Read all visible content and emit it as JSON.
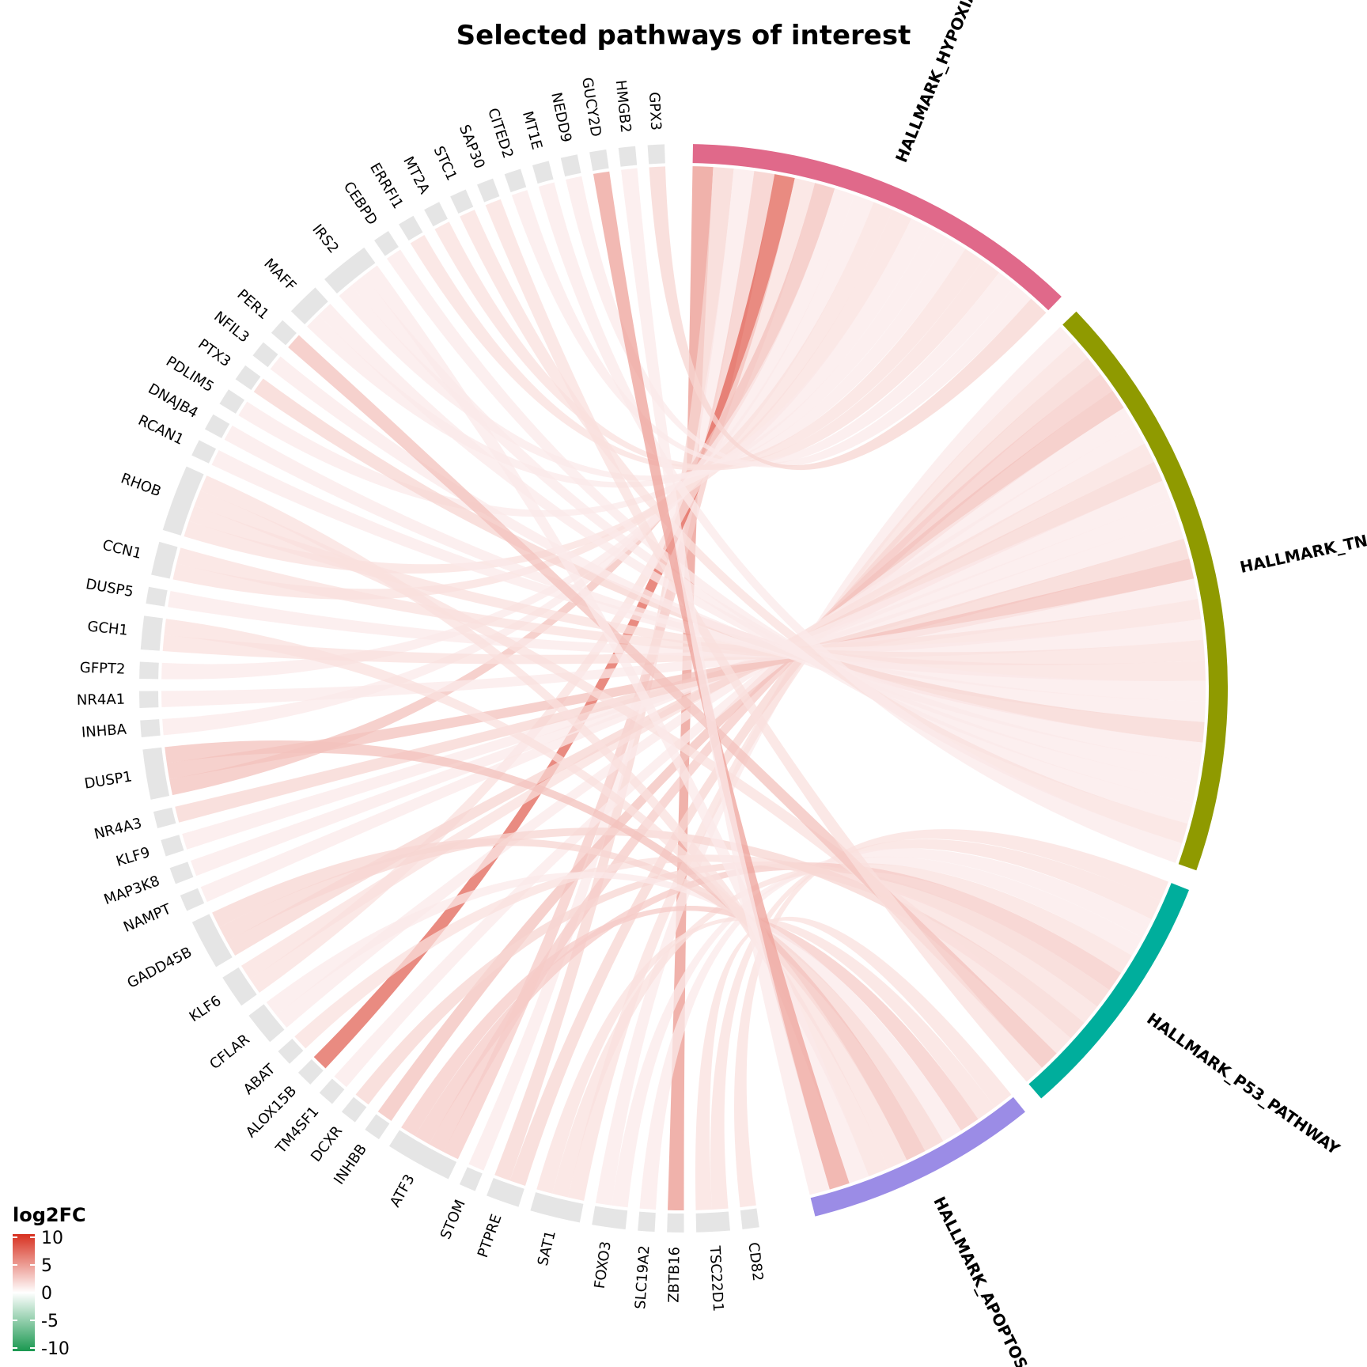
{
  "chart_data": {
    "type": "chord",
    "title": "Selected pathways of interest",
    "pathways": [
      {
        "name": "HALLMARK_HYPOXIA",
        "color": "#E0698A"
      },
      {
        "name": "HALLMARK_TNFA_SIGNALING_VIA_NFKB",
        "color": "#8F9A00"
      },
      {
        "name": "HALLMARK_P53_PATHWAY",
        "color": "#00AE9C"
      },
      {
        "name": "HALLMARK_APOPTOSIS",
        "color": "#9B8CE6"
      }
    ],
    "genes": [
      {
        "name": "CD82",
        "log2fc": 1.5,
        "pathways": [
          2
        ]
      },
      {
        "name": "TSC22D1",
        "log2fc": 1.5,
        "pathways": [
          2,
          3
        ]
      },
      {
        "name": "ZBTB16",
        "log2fc": 5.0,
        "pathways": [
          0
        ]
      },
      {
        "name": "SLC19A2",
        "log2fc": 1.0,
        "pathways": [
          2
        ]
      },
      {
        "name": "FOXO3",
        "log2fc": 1.0,
        "pathways": [
          2,
          1
        ]
      },
      {
        "name": "SAT1",
        "log2fc": 1.5,
        "pathways": [
          1,
          2,
          3
        ]
      },
      {
        "name": "PTPRE",
        "log2fc": 2.0,
        "pathways": [
          1,
          0
        ]
      },
      {
        "name": "STOM",
        "log2fc": 1.0,
        "pathways": [
          0
        ]
      },
      {
        "name": "ATF3",
        "log2fc": 2.5,
        "pathways": [
          0,
          1,
          2,
          3
        ]
      },
      {
        "name": "INHBB",
        "log2fc": 3.0,
        "pathways": [
          1
        ]
      },
      {
        "name": "DCXR",
        "log2fc": 2.0,
        "pathways": [
          2
        ]
      },
      {
        "name": "TM4SF1",
        "log2fc": 1.0,
        "pathways": [
          1
        ]
      },
      {
        "name": "ALOX15B",
        "log2fc": 7.5,
        "pathways": [
          0
        ]
      },
      {
        "name": "ABAT",
        "log2fc": 1.5,
        "pathways": [
          2
        ]
      },
      {
        "name": "CFLAR",
        "log2fc": 1.0,
        "pathways": [
          1,
          3
        ]
      },
      {
        "name": "KLF6",
        "log2fc": 1.5,
        "pathways": [
          0,
          1
        ]
      },
      {
        "name": "GADD45B",
        "log2fc": 2.0,
        "pathways": [
          1,
          2,
          3
        ]
      },
      {
        "name": "NAMPT",
        "log2fc": 1.0,
        "pathways": [
          1
        ]
      },
      {
        "name": "MAP3K8",
        "log2fc": 1.0,
        "pathways": [
          1
        ]
      },
      {
        "name": "KLF9",
        "log2fc": 1.0,
        "pathways": [
          1
        ]
      },
      {
        "name": "NR4A3",
        "log2fc": 2.0,
        "pathways": [
          1
        ]
      },
      {
        "name": "DUSP1",
        "log2fc": 3.0,
        "pathways": [
          0,
          1,
          3
        ]
      },
      {
        "name": "INHBA",
        "log2fc": 1.0,
        "pathways": [
          0
        ]
      },
      {
        "name": "NR4A1",
        "log2fc": 1.0,
        "pathways": [
          1
        ]
      },
      {
        "name": "GFPT2",
        "log2fc": 1.0,
        "pathways": [
          0
        ]
      },
      {
        "name": "GCH1",
        "log2fc": 1.5,
        "pathways": [
          1,
          3
        ]
      },
      {
        "name": "DUSP5",
        "log2fc": 1.0,
        "pathways": [
          1
        ]
      },
      {
        "name": "CCN1",
        "log2fc": 1.5,
        "pathways": [
          0,
          1
        ]
      },
      {
        "name": "RHOB",
        "log2fc": 1.5,
        "pathways": [
          0,
          1,
          2,
          3
        ]
      },
      {
        "name": "RCAN1",
        "log2fc": 1.0,
        "pathways": [
          1
        ]
      },
      {
        "name": "DNAJB4",
        "log2fc": 1.0,
        "pathways": [
          1
        ]
      },
      {
        "name": "PDLIM5",
        "log2fc": 1.0,
        "pathways": [
          0
        ]
      },
      {
        "name": "PTX3",
        "log2fc": 2.0,
        "pathways": [
          1
        ]
      },
      {
        "name": "NFIL3",
        "log2fc": 1.0,
        "pathways": [
          1
        ]
      },
      {
        "name": "PER1",
        "log2fc": 3.0,
        "pathways": [
          2
        ]
      },
      {
        "name": "MAFF",
        "log2fc": 1.0,
        "pathways": [
          0,
          1
        ]
      },
      {
        "name": "IRS2",
        "log2fc": 1.0,
        "pathways": [
          0,
          1,
          3
        ]
      },
      {
        "name": "CEBPD",
        "log2fc": 1.0,
        "pathways": [
          1
        ]
      },
      {
        "name": "ERRFI1",
        "log2fc": 1.5,
        "pathways": [
          0
        ]
      },
      {
        "name": "MT2A",
        "log2fc": 1.5,
        "pathways": [
          0
        ]
      },
      {
        "name": "STC1",
        "log2fc": 1.5,
        "pathways": [
          1
        ]
      },
      {
        "name": "SAP30",
        "log2fc": 1.5,
        "pathways": [
          2
        ]
      },
      {
        "name": "CITED2",
        "log2fc": 1.0,
        "pathways": [
          0
        ]
      },
      {
        "name": "MT1E",
        "log2fc": 1.0,
        "pathways": [
          1
        ]
      },
      {
        "name": "NEDD9",
        "log2fc": 1.0,
        "pathways": [
          0
        ]
      },
      {
        "name": "GUCY2D",
        "log2fc": 4.5,
        "pathways": [
          3
        ]
      },
      {
        "name": "HMGB2",
        "log2fc": 1.0,
        "pathways": [
          3
        ]
      },
      {
        "name": "GPX3",
        "log2fc": 2.0,
        "pathways": [
          0
        ]
      }
    ],
    "legend": {
      "title": "log2FC",
      "ticks": [
        "10",
        "5",
        "0",
        "-5",
        "-10"
      ],
      "range": [
        -10,
        10
      ],
      "colors": {
        "high": "#D7301F",
        "mid": "#FFFFFF",
        "low": "#1A9850"
      }
    }
  }
}
